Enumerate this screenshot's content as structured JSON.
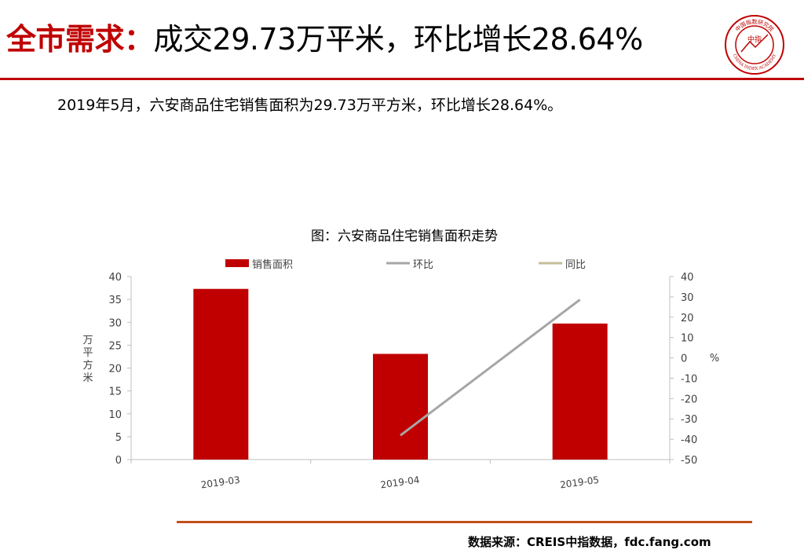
{
  "header": {
    "title_key": "全市需求：",
    "title_value": "成交29.73万平米，环比增长28.64%",
    "subtitle": "2019年5月，六安商品住宅销售面积为29.73万平方米，环比增长28.64%。"
  },
  "logo": {
    "icon": "china-index-academy-seal",
    "text_top": "中国指数研究院",
    "text_center": "中指",
    "text_bottom": "CHINA INDEX ACADEMY",
    "color": "#c00000"
  },
  "chart_data": {
    "type": "bar",
    "title": "图：六安商品住宅销售面积走势",
    "categories": [
      "2019-03",
      "2019-04",
      "2019-05"
    ],
    "series": [
      {
        "name": "销售面积",
        "type": "bar",
        "axis": "left",
        "color": "#c00000",
        "values": [
          37.3,
          23.1,
          29.73
        ]
      },
      {
        "name": "环比",
        "type": "line",
        "axis": "right",
        "color": "#a6a6a6",
        "values": [
          null,
          -38.1,
          28.64
        ]
      },
      {
        "name": "同比",
        "type": "line",
        "axis": "right",
        "color": "#c4bd97",
        "values": [
          null,
          null,
          null
        ]
      }
    ],
    "ylabel": "万平方米",
    "y2label": "%",
    "ylim": [
      0,
      40
    ],
    "yticks": [
      0,
      5,
      10,
      15,
      20,
      25,
      30,
      35,
      40
    ],
    "y2lim": [
      -50,
      40
    ],
    "y2ticks": [
      -50,
      -40,
      -30,
      -20,
      -10,
      0,
      10,
      20,
      30,
      40
    ],
    "legend_position": "top",
    "grid": false
  },
  "footer": {
    "source": "数据来源：CREIS中指数据，fdc.fang.com"
  }
}
